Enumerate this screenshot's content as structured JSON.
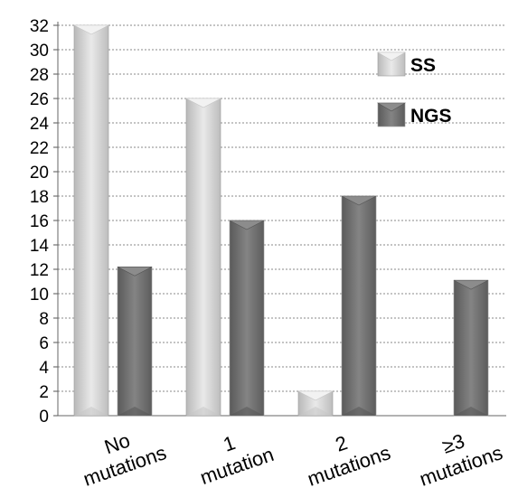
{
  "chart_data": {
    "type": "bar",
    "categories": [
      [
        "No",
        "mutations"
      ],
      [
        "1",
        "mutation"
      ],
      [
        "2",
        "mutations"
      ],
      [
        "≥3",
        "mutations"
      ]
    ],
    "series": [
      {
        "name": "SS",
        "values": [
          32,
          26,
          2,
          0
        ],
        "color": "#d6d6d6"
      },
      {
        "name": "NGS",
        "values": [
          12.2,
          16,
          18,
          11.1
        ],
        "color": "#707070"
      }
    ],
    "ylim": [
      0,
      32
    ],
    "ytick_step": 2,
    "grid": true,
    "legend_position": "top-right"
  }
}
